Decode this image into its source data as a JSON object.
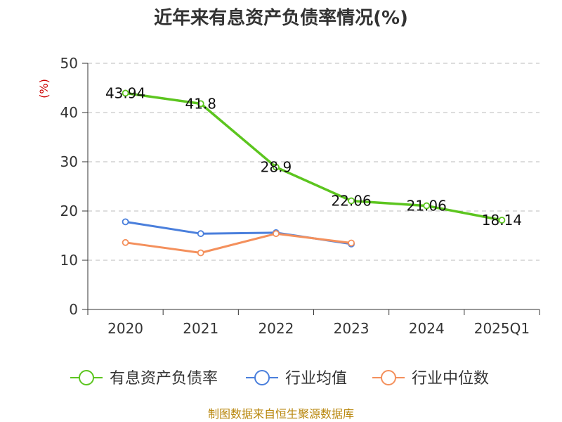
{
  "chart_data": {
    "type": "line",
    "title": "近年来有息资产负债率情况(%)",
    "unit_label": "(%)",
    "categories": [
      "2020",
      "2021",
      "2022",
      "2023",
      "2024",
      "2025Q1"
    ],
    "ylim": [
      0,
      50
    ],
    "yticks": [
      0,
      10,
      20,
      30,
      40,
      50
    ],
    "grid": true,
    "legend_position": "bottom",
    "series": [
      {
        "name": "有息资产负债率",
        "color": "#5cc51f",
        "values": [
          43.94,
          41.8,
          28.9,
          22.06,
          21.06,
          18.14
        ],
        "labels": [
          "43.94",
          "41.8",
          "28.9",
          "22.06",
          "21.06",
          "18.14"
        ]
      },
      {
        "name": "行业均值",
        "color": "#4a7fdc",
        "values": [
          17.8,
          15.4,
          15.6,
          13.3,
          null,
          null
        ]
      },
      {
        "name": "行业中位数",
        "color": "#f4905c",
        "values": [
          13.6,
          11.5,
          15.4,
          13.5,
          null,
          null
        ]
      }
    ],
    "source": "制图数据来自恒生聚源数据库"
  }
}
